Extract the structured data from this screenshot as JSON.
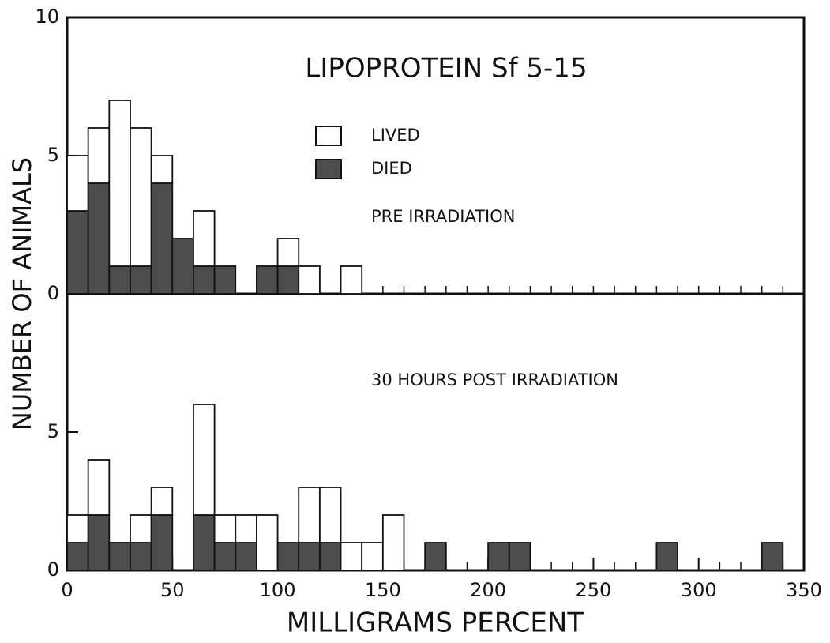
{
  "chart_data": [
    {
      "type": "histogram",
      "title": "LIPOPROTEIN Sf 5-15",
      "annotation": "PRE IRRADIATION",
      "ylabel": "NUMBER OF ANIMALS",
      "bins": [
        0,
        10,
        20,
        30,
        40,
        50,
        60,
        70,
        80,
        90,
        100,
        110,
        120,
        130,
        140,
        150,
        160,
        170,
        180,
        190,
        200,
        210,
        220,
        230,
        240,
        250,
        260,
        270,
        280,
        290,
        300,
        310,
        320,
        330,
        340,
        350
      ],
      "series": [
        {
          "name": "DIED",
          "color": "#4d4d4d",
          "values": [
            3,
            4,
            1,
            1,
            4,
            2,
            1,
            1,
            0,
            1,
            1,
            0,
            0,
            0,
            0,
            0,
            0,
            0,
            0,
            0,
            0,
            0,
            0,
            0,
            0,
            0,
            0,
            0,
            0,
            0,
            0,
            0,
            0,
            0,
            0
          ]
        },
        {
          "name": "LIVED",
          "color": "#ffffff",
          "values": [
            2,
            2,
            6,
            5,
            1,
            0,
            2,
            0,
            0,
            0,
            1,
            1,
            0,
            1,
            0,
            0,
            0,
            0,
            0,
            0,
            0,
            0,
            0,
            0,
            0,
            0,
            0,
            0,
            0,
            0,
            0,
            0,
            0,
            0,
            0
          ]
        }
      ],
      "xlim": [
        0,
        350
      ],
      "ylim": [
        0,
        10
      ],
      "yticks": [
        0,
        5,
        10
      ]
    },
    {
      "type": "histogram",
      "annotation": "30 HOURS POST IRRADIATION",
      "xlabel": "MILLIGRAMS PERCENT",
      "bins": [
        0,
        10,
        20,
        30,
        40,
        50,
        60,
        70,
        80,
        90,
        100,
        110,
        120,
        130,
        140,
        150,
        160,
        170,
        180,
        190,
        200,
        210,
        220,
        230,
        240,
        250,
        260,
        270,
        280,
        290,
        300,
        310,
        320,
        330,
        340,
        350
      ],
      "series": [
        {
          "color": "#4d4d4d",
          "values": [
            1,
            2,
            1,
            1,
            2,
            0,
            2,
            1,
            1,
            0,
            1,
            1,
            1,
            0,
            0,
            0,
            0,
            1,
            0,
            0,
            1,
            1,
            0,
            0,
            0,
            0,
            0,
            0,
            1,
            0,
            0,
            0,
            0,
            1,
            0
          ]
        },
        {
          "color": "#ffffff",
          "values": [
            1,
            2,
            0,
            1,
            1,
            0,
            4,
            1,
            1,
            2,
            0,
            2,
            2,
            1,
            1,
            2,
            0,
            0,
            0,
            0,
            0,
            0,
            0,
            0,
            0,
            0,
            0,
            0,
            0,
            0,
            0,
            0,
            0,
            0,
            0
          ]
        }
      ],
      "xlim": [
        0,
        350
      ],
      "xticks": [
        0,
        50,
        100,
        150,
        200,
        250,
        300,
        350
      ],
      "ylim": [
        0,
        10
      ],
      "yticks": [
        0,
        5
      ]
    }
  ]
}
